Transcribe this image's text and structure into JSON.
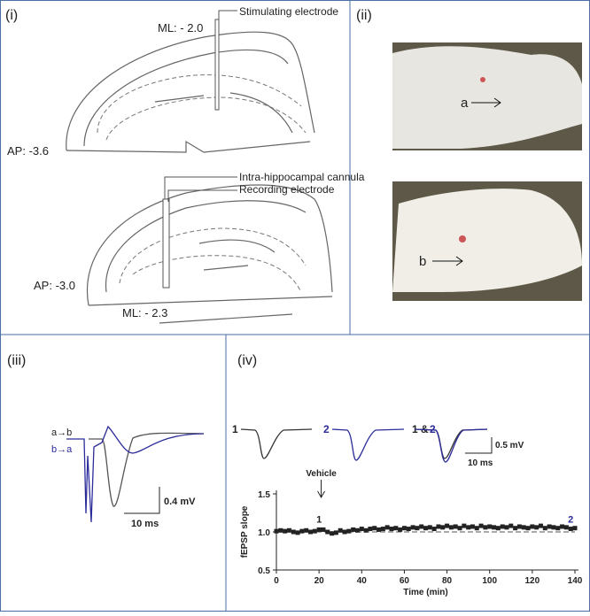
{
  "panels": {
    "i": {
      "label": "(i)",
      "ml_top": "ML: - 2.0",
      "stim": "Stimulating electrode",
      "ap_top": "AP: -3.6",
      "cannula": "Intra-hippocampal cannula",
      "rec": "Recording electrode",
      "ap_bottom": "AP: -3.0",
      "ml_bottom": "ML: - 2.3"
    },
    "ii": {
      "label": "(ii)",
      "a": "a",
      "b": "b"
    },
    "iii": {
      "label": "(iii)",
      "ab": "a→b",
      "ba": "b→a",
      "scale_v": "0.4 mV",
      "scale_t": "10 ms"
    },
    "iv": {
      "label": "(iv)",
      "t1": "1",
      "t2": "2",
      "t12a": "1 &",
      "t12b": "2",
      "scale_v": "0.5 mV",
      "scale_t": "10 ms"
    }
  },
  "chart_data": {
    "type": "scatter",
    "xlabel": "Time (min)",
    "ylabel": "fEPSP slope",
    "color": "#222222",
    "x": [
      0,
      2,
      4,
      6,
      8,
      10,
      12,
      14,
      16,
      18,
      20,
      22,
      24,
      26,
      28,
      30,
      32,
      34,
      36,
      38,
      40,
      42,
      44,
      46,
      48,
      50,
      52,
      54,
      56,
      58,
      60,
      62,
      64,
      66,
      68,
      70,
      72,
      74,
      76,
      78,
      80,
      82,
      84,
      86,
      88,
      90,
      92,
      94,
      96,
      98,
      100,
      102,
      104,
      106,
      108,
      110,
      112,
      114,
      116,
      118,
      120,
      122,
      124,
      126,
      128,
      130,
      132,
      134,
      136,
      138,
      140
    ],
    "values": [
      1.01,
      1.02,
      1.01,
      1.02,
      1.0,
      0.99,
      1.01,
      1.02,
      1.0,
      1.01,
      1.03,
      1.03,
      1.0,
      0.98,
      0.99,
      1.02,
      1.0,
      1.01,
      1.03,
      1.02,
      1.04,
      1.02,
      1.04,
      1.05,
      1.03,
      1.04,
      1.06,
      1.04,
      1.05,
      1.03,
      1.05,
      1.04,
      1.06,
      1.05,
      1.07,
      1.05,
      1.06,
      1.04,
      1.07,
      1.06,
      1.08,
      1.06,
      1.07,
      1.05,
      1.08,
      1.06,
      1.07,
      1.05,
      1.08,
      1.06,
      1.07,
      1.06,
      1.05,
      1.07,
      1.06,
      1.08,
      1.05,
      1.07,
      1.06,
      1.05,
      1.07,
      1.06,
      1.08,
      1.05,
      1.07,
      1.06,
      1.05,
      1.07,
      1.06,
      1.04,
      1.05
    ],
    "xlim": [
      0,
      140
    ],
    "xticks": [
      0,
      20,
      40,
      60,
      80,
      100,
      120,
      140
    ],
    "ylim": [
      0.5,
      1.5
    ],
    "yticks": [
      0.5,
      {
        "value": 1,
        "label": "1.0"
      },
      1.5
    ],
    "reference_y": 1,
    "annotations": [
      {
        "text": "Vehicle",
        "x": 21
      },
      {
        "text": "1",
        "x": 20
      },
      {
        "text": "2",
        "x": 138
      }
    ]
  }
}
